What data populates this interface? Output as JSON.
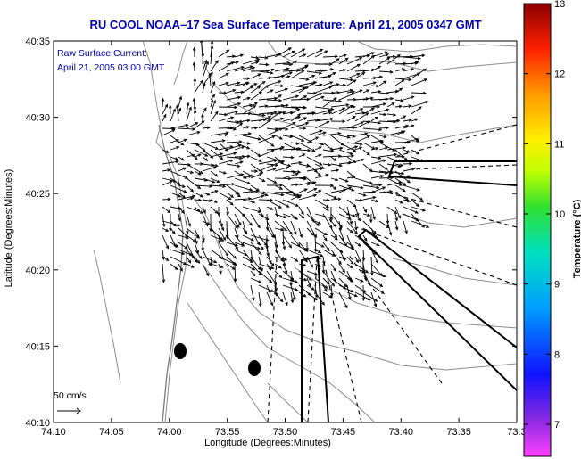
{
  "title": "RU COOL  NOAA–17  Sea Surface Temperature:  April 21, 2005 0347 GMT",
  "annotation": {
    "line1": "Raw Surface Current:",
    "line2": "April 21, 2005 03:00 GMT"
  },
  "axes": {
    "xlabel": "Longitude (Degrees:Minutes)",
    "ylabel": "Latitude (Degrees:Minutes)",
    "xticks": [
      "74:10",
      "74:05",
      "74:00",
      "73:55",
      "73:50",
      "73:45",
      "73:40",
      "73:35",
      "73:3"
    ],
    "yticks": [
      "40:10",
      "40:15",
      "40:20",
      "40:25",
      "40:30",
      "40:35"
    ]
  },
  "colorbar": {
    "label": "Temperature (°C)",
    "ticks": [
      "7",
      "8",
      "9",
      "10",
      "11",
      "12",
      "13"
    ]
  },
  "scale_vector": {
    "label": "50 cm/s"
  },
  "colors": {
    "title": "#0000b4",
    "annotation": "#0000b4",
    "contour": "#8c8c8c",
    "vector": "#000000"
  }
}
